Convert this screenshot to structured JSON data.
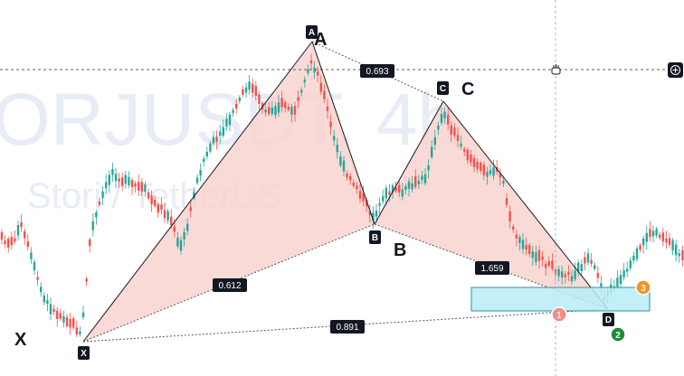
{
  "watermark": {
    "symbol": "ORJUSDT, 4h",
    "name": "Storj / TetherUS"
  },
  "pattern": {
    "point_labels": [
      "X",
      "A",
      "B",
      "C",
      "D"
    ],
    "ratios": {
      "xb": "0.612",
      "ac": "0.693",
      "bd": "1.659",
      "xd": "0.891"
    }
  },
  "markers": {
    "m1": "1",
    "m2": "2",
    "m3": "3"
  },
  "colors": {
    "up": "#26a69a",
    "down": "#ef5350",
    "pattern_fill": "#f8d4cf",
    "zone_fill": "#b8ecf5",
    "zone_border": "#2a90b0"
  }
}
